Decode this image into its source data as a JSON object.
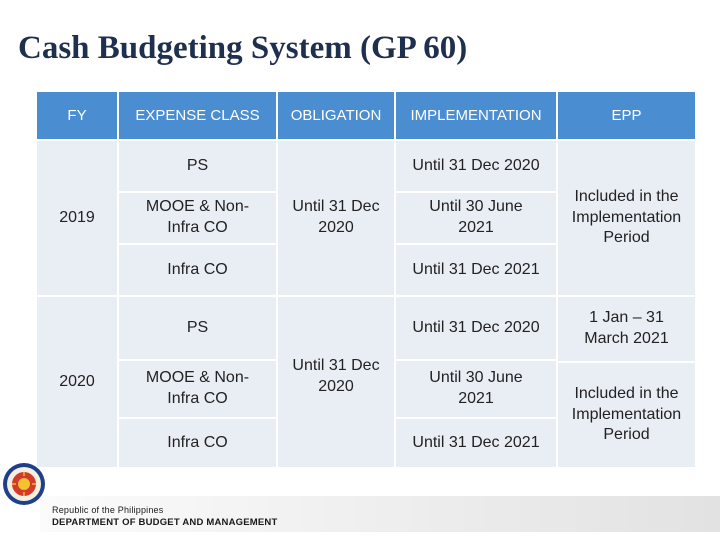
{
  "title": "Cash Budgeting System (GP 60)",
  "headers": {
    "fy": "FY",
    "expense_class": "EXPENSE CLASS",
    "obligation": "OBLIGATION",
    "implementation": "IMPLEMENTATION",
    "epp": "EPP"
  },
  "rows_2019": {
    "fy": "2019",
    "ps": "PS",
    "mooe": "MOOE & Non-Infra CO",
    "infra": "Infra CO",
    "obligation": "Until 31 Dec 2020",
    "impl_ps": "Until 31 Dec 2020",
    "impl_mooe": "Until 30 June 2021",
    "impl_infra": "Until 31 Dec 2021",
    "epp": "Included in the Implementation Period"
  },
  "rows_2020": {
    "fy": "2020",
    "ps": "PS",
    "mooe": "MOOE & Non-Infra CO",
    "infra": "Infra CO",
    "obligation": "Until 31 Dec 2020",
    "impl_ps": "Until 31 Dec 2020",
    "impl_mooe": "Until 30 June 2021",
    "impl_infra": "Until 31 Dec 2021",
    "epp_ps": "1 Jan – 31 March 2021",
    "epp": "Included in the Implementation Period"
  },
  "footer": {
    "line1": "Republic of the Philippines",
    "line2": "DEPARTMENT OF BUDGET AND MANAGEMENT"
  }
}
